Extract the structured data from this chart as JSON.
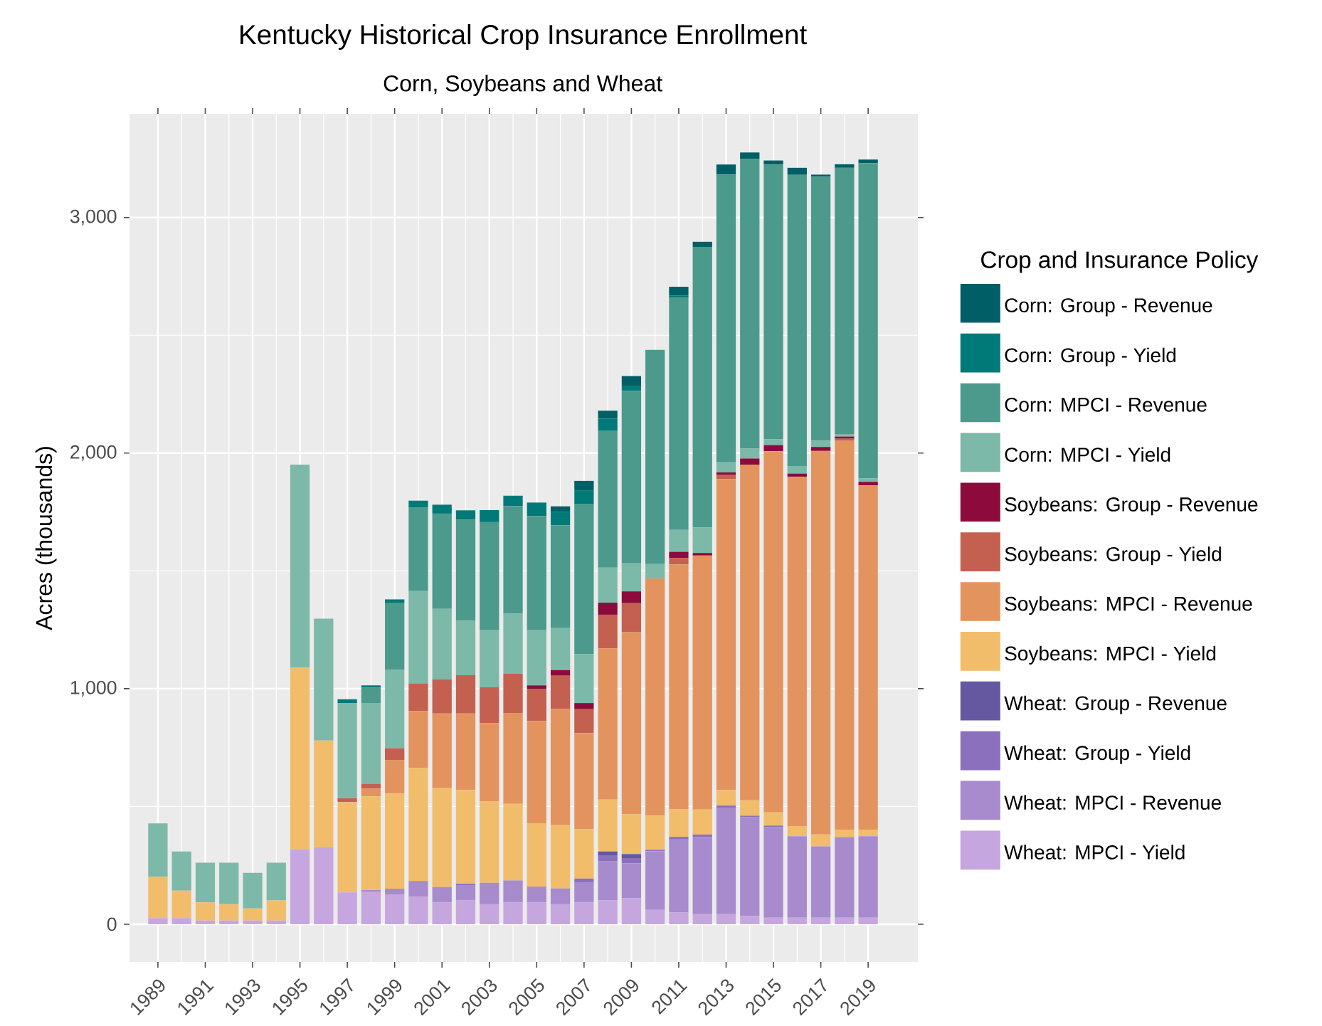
{
  "chart_data": {
    "type": "bar",
    "stacked": true,
    "title": "Kentucky Historical Crop Insurance Enrollment",
    "subtitle": "Corn, Soybeans and Wheat",
    "ylabel": "Acres (thousands)",
    "legend_title": "Crop and Insurance Policy",
    "legend": "right",
    "grid": true,
    "categories": [
      "1989",
      null,
      "1991",
      null,
      "1993",
      null,
      "1995",
      null,
      "1997",
      null,
      "1999",
      null,
      "2001",
      null,
      "2003",
      null,
      "2005",
      null,
      "2007",
      null,
      "2009",
      null,
      "2011",
      null,
      "2013",
      null,
      "2015",
      null,
      "2017",
      null,
      "2019"
    ],
    "ylim": [
      -160,
      3440
    ],
    "yticks": [
      0,
      {
        "value": 1000,
        "label": "1,000"
      },
      {
        "value": 2000,
        "label": "2,000"
      },
      {
        "value": 3000,
        "label": "3,000"
      }
    ],
    "series": [
      {
        "name": "Wheat: MPCI - Yield",
        "color": "#c6a6df",
        "values": [
          26,
          26,
          16,
          16,
          16,
          16,
          319,
          327,
          135,
          139,
          127,
          117,
          93,
          103,
          85,
          93,
          93,
          85,
          93,
          101,
          110,
          61,
          50,
          43,
          43,
          35,
          28,
          28,
          28,
          28,
          28
        ]
      },
      {
        "name": "Wheat: MPCI - Revenue",
        "color": "#a78bcd",
        "values": [
          0,
          0,
          0,
          0,
          0,
          0,
          0,
          0,
          0,
          6,
          24,
          67,
          65,
          61,
          91,
          93,
          67,
          67,
          83,
          166,
          149,
          249,
          310,
          327,
          450,
          420,
          385,
          346,
          303,
          342,
          346
        ]
      },
      {
        "name": "Wheat: Group - Yield",
        "color": "#8b70bd",
        "values": [
          0,
          0,
          0,
          0,
          0,
          0,
          0,
          0,
          0,
          0,
          0,
          0,
          0,
          8,
          0,
          0,
          0,
          0,
          18,
          26,
          22,
          6,
          11,
          11,
          11,
          6,
          6,
          0,
          0,
          0,
          0
        ]
      },
      {
        "name": "Wheat: Group - Revenue",
        "color": "#6658a0",
        "values": [
          0,
          0,
          0,
          0,
          0,
          0,
          0,
          0,
          0,
          0,
          0,
          0,
          0,
          0,
          0,
          0,
          0,
          0,
          0,
          16,
          17,
          0,
          0,
          0,
          0,
          0,
          0,
          0,
          0,
          0,
          0
        ]
      },
      {
        "name": "Soybeans: MPCI - Yield",
        "color": "#f2bd6b",
        "values": [
          176,
          117,
          77,
          69,
          51,
          85,
          770,
          453,
          384,
          398,
          404,
          479,
          420,
          398,
          345,
          325,
          269,
          269,
          210,
          220,
          169,
          145,
          117,
          106,
          65,
          65,
          56,
          43,
          50,
          32,
          28
        ]
      },
      {
        "name": "Soybeans: MPCI - Revenue",
        "color": "#e3945e",
        "values": [
          0,
          0,
          0,
          0,
          0,
          0,
          0,
          0,
          0,
          33,
          141,
          242,
          317,
          325,
          333,
          386,
          434,
          493,
          408,
          642,
          773,
          1007,
          1039,
          1078,
          1321,
          1425,
          1533,
          1483,
          1628,
          1650,
          1461
        ]
      },
      {
        "name": "Soybeans: Group - Yield",
        "color": "#c4604f",
        "values": [
          0,
          0,
          0,
          0,
          0,
          0,
          0,
          0,
          16,
          20,
          51,
          117,
          145,
          162,
          152,
          166,
          135,
          141,
          101,
          143,
          123,
          0,
          28,
          0,
          17,
          0,
          0,
          0,
          0,
          9,
          0
        ]
      },
      {
        "name": "Soybeans: Group - Revenue",
        "color": "#8c0a3c",
        "values": [
          0,
          0,
          0,
          0,
          0,
          0,
          0,
          0,
          0,
          0,
          0,
          0,
          0,
          0,
          0,
          0,
          16,
          24,
          26,
          51,
          50,
          0,
          26,
          11,
          11,
          26,
          26,
          13,
          17,
          9,
          15
        ]
      },
      {
        "name": "Corn: MPCI - Yield",
        "color": "#7db9a8",
        "values": [
          226,
          166,
          168,
          176,
          151,
          160,
          862,
          517,
          404,
          343,
          333,
          392,
          299,
          232,
          242,
          255,
          234,
          178,
          208,
          149,
          119,
          61,
          93,
          108,
          43,
          43,
          24,
          32,
          26,
          11,
          15
        ]
      },
      {
        "name": "Corn: MPCI - Revenue",
        "color": "#4b9a8c",
        "values": [
          0,
          0,
          0,
          0,
          0,
          0,
          0,
          0,
          0,
          65,
          285,
          354,
          404,
          428,
          459,
          457,
          485,
          436,
          636,
          582,
          732,
          909,
          985,
          1191,
          1221,
          1228,
          1167,
          1236,
          1121,
          1130,
          1338
        ]
      },
      {
        "name": "Corn: Group - Yield",
        "color": "#007a78",
        "values": [
          0,
          0,
          0,
          0,
          0,
          0,
          0,
          0,
          16,
          10,
          14,
          30,
          38,
          40,
          51,
          44,
          57,
          57,
          59,
          50,
          22,
          0,
          10,
          0,
          0,
          0,
          0,
          0,
          0,
          0,
          0
        ]
      },
      {
        "name": "Corn: Group - Revenue",
        "color": "#005f66",
        "values": [
          0,
          0,
          0,
          0,
          0,
          0,
          0,
          0,
          0,
          0,
          0,
          0,
          0,
          0,
          0,
          0,
          0,
          24,
          40,
          34,
          41,
          0,
          37,
          22,
          43,
          28,
          17,
          30,
          9,
          15,
          15
        ]
      }
    ]
  }
}
